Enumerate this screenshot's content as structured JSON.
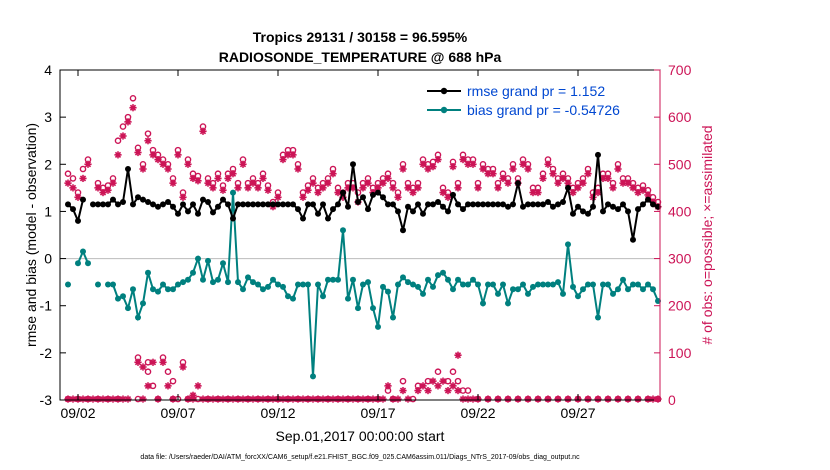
{
  "chart_data": {
    "type": "line",
    "title_line1": "Tropics 29131 / 30158 = 96.595%",
    "title_line2": "RADIOSONDE_TEMPERATURE @ 688 hPa",
    "xlabel": "Sep.01,2017 00:00:00 start",
    "ylabel_left": "rmse and bias (model - observation)",
    "ylabel_right": "# of obs: o=possible; ×=assimilated",
    "footer": "data file: /Users/raeder/DAI/ATM_forcXX/CAM6_setup/f.e21.FHIST_BGC.f09_025.CAM6assim.011/Diags_NTrS_2017-09/obs_diag_output.nc",
    "xlim": [
      0.6,
      30.6
    ],
    "ylim_left": [
      -3,
      4
    ],
    "ylim_right": [
      0,
      700
    ],
    "xticks": [
      1.5,
      6.5,
      11.5,
      16.5,
      21.5,
      26.5
    ],
    "xtick_labels": [
      "09/02",
      "09/07",
      "09/12",
      "09/17",
      "09/22",
      "09/27"
    ],
    "yticks_left": [
      -3,
      -2,
      -1,
      0,
      1,
      2,
      3,
      4
    ],
    "yticks_right": [
      0,
      100,
      200,
      300,
      400,
      500,
      600,
      700
    ],
    "colors": {
      "rmse": "#000000",
      "bias": "#00807f",
      "obs": "#cc1456",
      "legend_text": "#0047d1",
      "zero": "#bbbbbb"
    },
    "legend": [
      {
        "name": "rmse grand pr = 1.152"
      },
      {
        "name": "bias grand pr = -0.54726"
      }
    ],
    "x": [
      1.0,
      1.25,
      1.5,
      1.75,
      2.0,
      2.25,
      2.5,
      2.75,
      3.0,
      3.25,
      3.5,
      3.75,
      4.0,
      4.25,
      4.5,
      4.75,
      5.0,
      5.25,
      5.5,
      5.75,
      6.0,
      6.25,
      6.5,
      6.75,
      7.0,
      7.25,
      7.5,
      7.75,
      8.0,
      8.25,
      8.5,
      8.75,
      9.0,
      9.25,
      9.5,
      9.75,
      10.0,
      10.25,
      10.5,
      10.75,
      11.0,
      11.25,
      11.5,
      11.75,
      12.0,
      12.25,
      12.5,
      12.75,
      13.0,
      13.25,
      13.5,
      13.75,
      14.0,
      14.25,
      14.5,
      14.75,
      15.0,
      15.25,
      15.5,
      15.75,
      16.0,
      16.25,
      16.5,
      16.75,
      17.0,
      17.25,
      17.5,
      17.75,
      18.0,
      18.25,
      18.5,
      18.75,
      19.0,
      19.25,
      19.5,
      19.75,
      20.0,
      20.25,
      20.5,
      20.75,
      21.0,
      21.25,
      21.5,
      21.75,
      22.0,
      22.25,
      22.5,
      22.75,
      23.0,
      23.25,
      23.5,
      23.75,
      24.0,
      24.25,
      24.5,
      24.75,
      25.0,
      25.25,
      25.5,
      25.75,
      26.0,
      26.25,
      26.5,
      26.75,
      27.0,
      27.25,
      27.5,
      27.75,
      28.0,
      28.25,
      28.5,
      28.75,
      29.0,
      29.25,
      29.5,
      29.75,
      30.0,
      30.25,
      30.5
    ],
    "rmse": [
      1.15,
      1.05,
      0.8,
      1.25,
      null,
      1.15,
      1.15,
      1.15,
      1.15,
      1.25,
      1.15,
      1.2,
      1.9,
      1.15,
      1.3,
      1.25,
      1.2,
      1.15,
      1.1,
      1.15,
      1.2,
      1.1,
      0.95,
      1.15,
      1.0,
      1.15,
      0.95,
      1.25,
      1.2,
      0.98,
      1.1,
      1.25,
      1.15,
      0.85,
      1.15,
      1.15,
      1.15,
      1.15,
      1.15,
      1.15,
      1.15,
      1.15,
      1.15,
      1.15,
      1.15,
      1.15,
      1.05,
      0.85,
      1.15,
      1.15,
      0.95,
      1.15,
      0.85,
      1.05,
      1.15,
      1.4,
      1.1,
      2.0,
      1.2,
      1.3,
      1.05,
      1.35,
      1.4,
      1.3,
      1.15,
      1.15,
      1.0,
      0.6,
      1.1,
      1.0,
      1.15,
      0.95,
      1.15,
      1.15,
      1.2,
      1.1,
      1.0,
      1.35,
      1.15,
      1.05,
      1.15,
      1.15,
      1.15,
      1.15,
      1.15,
      1.15,
      1.15,
      1.15,
      1.1,
      1.15,
      1.6,
      1.1,
      1.15,
      1.15,
      1.15,
      1.15,
      1.2,
      1.1,
      1.15,
      1.2,
      1.5,
      0.95,
      1.1,
      1.0,
      0.95,
      1.1,
      2.2,
      1.0,
      1.15,
      1.1,
      1.05,
      1.15,
      1.0,
      0.4,
      1.05,
      1.15,
      1.25,
      1.15,
      1.1
    ],
    "bias": [
      -0.55,
      null,
      -0.1,
      0.15,
      -0.1,
      null,
      -0.55,
      null,
      -0.55,
      -0.55,
      -0.85,
      -0.8,
      -1.05,
      -0.65,
      -1.25,
      -0.95,
      -0.3,
      -0.65,
      -0.7,
      -0.55,
      -0.65,
      -0.65,
      -0.55,
      -0.5,
      -0.45,
      -0.3,
      0.0,
      -0.45,
      -0.05,
      -0.5,
      -0.45,
      -0.1,
      -0.5,
      1.4,
      -0.5,
      -0.65,
      -0.4,
      -0.5,
      -0.55,
      -0.65,
      -0.6,
      -0.45,
      -0.55,
      -0.6,
      -0.8,
      -0.85,
      -0.55,
      -0.55,
      -0.55,
      -2.5,
      -0.55,
      -0.8,
      -0.45,
      -0.45,
      -0.45,
      0.6,
      -0.85,
      -0.45,
      -1.05,
      -0.55,
      -0.5,
      -1.05,
      -1.45,
      -0.6,
      -0.7,
      -1.25,
      -0.55,
      -0.4,
      -0.5,
      -0.55,
      -0.6,
      -0.75,
      -0.45,
      -0.6,
      -0.35,
      -0.3,
      -0.45,
      -0.65,
      -0.45,
      -0.55,
      -0.55,
      -0.45,
      -0.55,
      -0.95,
      -0.55,
      -0.55,
      -0.75,
      -0.55,
      -0.95,
      -0.65,
      -0.65,
      -0.55,
      -0.75,
      -0.6,
      -0.55,
      -0.55,
      -0.55,
      -0.55,
      -0.5,
      -0.75,
      0.3,
      -0.6,
      -0.8,
      -0.65,
      -0.55,
      -0.55,
      -1.25,
      -0.55,
      -0.55,
      -0.75,
      -0.65,
      -0.45,
      -0.65,
      -0.55,
      -0.55,
      -0.65,
      -0.55,
      -0.65,
      -0.9
    ],
    "obs_possible": [
      480,
      470,
      440,
      490,
      510,
      null,
      460,
      450,
      455,
      470,
      550,
      580,
      600,
      640,
      535,
      500,
      565,
      530,
      520,
      510,
      500,
      470,
      530,
      440,
      510,
      480,
      475,
      580,
      470,
      460,
      480,
      455,
      480,
      490,
      460,
      510,
      460,
      470,
      460,
      480,
      455,
      420,
      440,
      520,
      530,
      530,
      500,
      440,
      455,
      470,
      450,
      460,
      470,
      490,
      450,
      440,
      460,
      460,
      440,
      460,
      470,
      450,
      460,
      470,
      480,
      460,
      440,
      500,
      460,
      450,
      460,
      510,
      500,
      505,
      520,
      450,
      440,
      505,
      460,
      520,
      510,
      510,
      460,
      500,
      490,
      490,
      460,
      480,
      470,
      500,
      470,
      510,
      500,
      450,
      450,
      480,
      510,
      490,
      470,
      480,
      470,
      450,
      460,
      470,
      490,
      440,
      450,
      480,
      480,
      460,
      500,
      470,
      470,
      460,
      450,
      455,
      445,
      430,
      420
    ],
    "obs_assimilated": [
      460,
      450,
      430,
      470,
      500,
      null,
      450,
      440,
      445,
      460,
      520,
      560,
      590,
      620,
      525,
      490,
      550,
      520,
      510,
      500,
      490,
      460,
      520,
      430,
      500,
      470,
      465,
      570,
      460,
      450,
      470,
      445,
      470,
      480,
      450,
      500,
      450,
      460,
      450,
      470,
      445,
      410,
      430,
      510,
      520,
      520,
      490,
      430,
      445,
      460,
      440,
      450,
      460,
      480,
      440,
      430,
      450,
      450,
      420,
      450,
      460,
      440,
      450,
      460,
      470,
      450,
      430,
      490,
      450,
      440,
      450,
      500,
      490,
      495,
      510,
      440,
      430,
      495,
      450,
      510,
      500,
      500,
      450,
      490,
      480,
      480,
      450,
      470,
      460,
      490,
      460,
      500,
      490,
      440,
      440,
      470,
      500,
      480,
      460,
      470,
      460,
      440,
      450,
      460,
      480,
      430,
      440,
      470,
      470,
      450,
      490,
      460,
      460,
      450,
      440,
      445,
      435,
      420,
      410
    ],
    "obs_possible_0z": [
      {
        "x": 1.0,
        "v": 2
      },
      {
        "x": 1.5,
        "v": 2
      },
      {
        "x": 2.0,
        "v": 2
      },
      {
        "x": 2.5,
        "v": 2
      },
      {
        "x": 3.0,
        "v": 2
      },
      {
        "x": 3.5,
        "v": 2
      },
      {
        "x": 4.5,
        "v": 2
      },
      {
        "x": 5.0,
        "v": 80
      },
      {
        "x": 5.25,
        "v": 30
      },
      {
        "x": 5.5,
        "v": 2
      },
      {
        "x": 6.0,
        "v": 60
      },
      {
        "x": 6.25,
        "v": 2
      },
      {
        "x": 6.5,
        "v": 2
      },
      {
        "x": 7.0,
        "v": 2
      },
      {
        "x": 7.5,
        "v": 2
      },
      {
        "x": 8.0,
        "v": 2
      },
      {
        "x": 8.5,
        "v": 2
      },
      {
        "x": 9.0,
        "v": 2
      },
      {
        "x": 9.5,
        "v": 2
      },
      {
        "x": 10.0,
        "v": 2
      },
      {
        "x": 10.5,
        "v": 2
      },
      {
        "x": 11.0,
        "v": 2
      },
      {
        "x": 11.5,
        "v": 2
      },
      {
        "x": 12.0,
        "v": 2
      },
      {
        "x": 12.5,
        "v": 2
      },
      {
        "x": 13.0,
        "v": 2
      },
      {
        "x": 13.5,
        "v": 2
      },
      {
        "x": 14.0,
        "v": 2
      },
      {
        "x": 14.5,
        "v": 2
      },
      {
        "x": 15.0,
        "v": 2
      },
      {
        "x": 15.5,
        "v": 2
      },
      {
        "x": 16.0,
        "v": 2
      },
      {
        "x": 16.5,
        "v": 2
      },
      {
        "x": 17.0,
        "v": 20
      },
      {
        "x": 17.25,
        "v": 2
      },
      {
        "x": 17.75,
        "v": 40
      },
      {
        "x": 18.25,
        "v": 2
      },
      {
        "x": 18.5,
        "v": 30
      },
      {
        "x": 19.0,
        "v": 40
      },
      {
        "x": 19.5,
        "v": 60
      },
      {
        "x": 20.0,
        "v": 40
      },
      {
        "x": 20.25,
        "v": 60
      },
      {
        "x": 20.5,
        "v": 40
      },
      {
        "x": 21.0,
        "v": 20
      },
      {
        "x": 21.5,
        "v": 2
      },
      {
        "x": 22.0,
        "v": 2
      },
      {
        "x": 22.5,
        "v": 2
      },
      {
        "x": 23.0,
        "v": 2
      },
      {
        "x": 23.5,
        "v": 2
      },
      {
        "x": 24.0,
        "v": 2
      },
      {
        "x": 24.5,
        "v": 2
      },
      {
        "x": 25.0,
        "v": 2
      },
      {
        "x": 25.5,
        "v": 2
      },
      {
        "x": 26.0,
        "v": 2
      },
      {
        "x": 26.5,
        "v": 2
      },
      {
        "x": 27.0,
        "v": 2
      },
      {
        "x": 27.5,
        "v": 2
      },
      {
        "x": 28.0,
        "v": 2
      },
      {
        "x": 28.5,
        "v": 2
      },
      {
        "x": 29.0,
        "v": 2
      },
      {
        "x": 29.5,
        "v": 2
      },
      {
        "x": 30.0,
        "v": 2
      },
      {
        "x": 30.5,
        "v": 2
      }
    ],
    "obs_assimilated_0z": [
      {
        "x": 1.0,
        "v": 2
      },
      {
        "x": 1.25,
        "v": 2
      },
      {
        "x": 1.5,
        "v": 2
      },
      {
        "x": 1.75,
        "v": 2
      },
      {
        "x": 2.0,
        "v": 2
      },
      {
        "x": 2.25,
        "v": 2
      },
      {
        "x": 2.5,
        "v": 2
      },
      {
        "x": 2.75,
        "v": 2
      },
      {
        "x": 3.0,
        "v": 2
      },
      {
        "x": 3.25,
        "v": 2
      },
      {
        "x": 3.5,
        "v": 2
      },
      {
        "x": 3.75,
        "v": 2
      },
      {
        "x": 4.0,
        "v": 2
      },
      {
        "x": 4.5,
        "v": 80
      },
      {
        "x": 4.75,
        "v": 2
      },
      {
        "x": 5.0,
        "v": 30
      },
      {
        "x": 5.25,
        "v": 80
      },
      {
        "x": 5.5,
        "v": 2
      },
      {
        "x": 5.75,
        "v": 80
      },
      {
        "x": 6.0,
        "v": 30
      },
      {
        "x": 6.25,
        "v": 2
      },
      {
        "x": 6.75,
        "v": 70
      },
      {
        "x": 7.0,
        "v": 2
      },
      {
        "x": 7.25,
        "v": 2
      },
      {
        "x": 7.5,
        "v": 30
      },
      {
        "x": 7.75,
        "v": 2
      },
      {
        "x": 8.0,
        "v": 2
      },
      {
        "x": 8.25,
        "v": 2
      },
      {
        "x": 8.5,
        "v": 2
      },
      {
        "x": 8.75,
        "v": 2
      },
      {
        "x": 9.0,
        "v": 2
      },
      {
        "x": 9.25,
        "v": 2
      },
      {
        "x": 9.5,
        "v": 2
      },
      {
        "x": 9.75,
        "v": 2
      },
      {
        "x": 10.0,
        "v": 2
      },
      {
        "x": 10.25,
        "v": 2
      },
      {
        "x": 10.5,
        "v": 2
      },
      {
        "x": 10.75,
        "v": 2
      },
      {
        "x": 11.0,
        "v": 2
      },
      {
        "x": 11.25,
        "v": 2
      },
      {
        "x": 11.5,
        "v": 2
      },
      {
        "x": 11.75,
        "v": 2
      },
      {
        "x": 12.0,
        "v": 2
      },
      {
        "x": 12.25,
        "v": 2
      },
      {
        "x": 12.5,
        "v": 2
      },
      {
        "x": 12.75,
        "v": 2
      },
      {
        "x": 13.0,
        "v": 2
      },
      {
        "x": 13.25,
        "v": 2
      },
      {
        "x": 13.5,
        "v": 2
      },
      {
        "x": 13.75,
        "v": 2
      },
      {
        "x": 14.0,
        "v": 2
      },
      {
        "x": 14.25,
        "v": 2
      },
      {
        "x": 14.5,
        "v": 2
      },
      {
        "x": 14.75,
        "v": 2
      },
      {
        "x": 15.0,
        "v": 2
      },
      {
        "x": 15.25,
        "v": 2
      },
      {
        "x": 15.5,
        "v": 2
      },
      {
        "x": 15.75,
        "v": 2
      },
      {
        "x": 16.0,
        "v": 2
      },
      {
        "x": 16.25,
        "v": 2
      },
      {
        "x": 16.5,
        "v": 2
      },
      {
        "x": 16.75,
        "v": 2
      },
      {
        "x": 17.0,
        "v": 30
      },
      {
        "x": 17.25,
        "v": 2
      },
      {
        "x": 17.5,
        "v": 2
      },
      {
        "x": 17.75,
        "v": 20
      },
      {
        "x": 18.0,
        "v": 2
      },
      {
        "x": 18.5,
        "v": 20
      },
      {
        "x": 18.75,
        "v": 30
      },
      {
        "x": 19.0,
        "v": 20
      },
      {
        "x": 19.25,
        "v": 40
      },
      {
        "x": 19.5,
        "v": 30
      },
      {
        "x": 19.75,
        "v": 40
      },
      {
        "x": 20.0,
        "v": 20
      },
      {
        "x": 20.25,
        "v": 30
      },
      {
        "x": 20.5,
        "v": 20
      },
      {
        "x": 20.75,
        "v": 2
      },
      {
        "x": 21.0,
        "v": 2
      },
      {
        "x": 21.25,
        "v": 2
      },
      {
        "x": 21.5,
        "v": 2
      },
      {
        "x": 22.0,
        "v": 2
      },
      {
        "x": 22.5,
        "v": 2
      },
      {
        "x": 23.0,
        "v": 2
      },
      {
        "x": 23.5,
        "v": 2
      },
      {
        "x": 24.0,
        "v": 2
      },
      {
        "x": 24.5,
        "v": 2
      },
      {
        "x": 25.0,
        "v": 2
      },
      {
        "x": 25.5,
        "v": 2
      },
      {
        "x": 26.0,
        "v": 2
      },
      {
        "x": 26.5,
        "v": 2
      },
      {
        "x": 27.0,
        "v": 2
      },
      {
        "x": 27.5,
        "v": 2
      },
      {
        "x": 28.0,
        "v": 2
      },
      {
        "x": 28.5,
        "v": 2
      },
      {
        "x": 29.0,
        "v": 2
      },
      {
        "x": 29.5,
        "v": 2
      },
      {
        "x": 30.0,
        "v": 2
      },
      {
        "x": 30.25,
        "v": 2
      },
      {
        "x": 30.5,
        "v": 2
      }
    ],
    "obs_low_extra": [
      {
        "x": 4.5,
        "v": 90,
        "kind": "possible"
      },
      {
        "x": 4.75,
        "v": 70,
        "kind": "assimilated"
      },
      {
        "x": 5.0,
        "v": 60,
        "kind": "possible"
      },
      {
        "x": 5.75,
        "v": 90,
        "kind": "possible"
      },
      {
        "x": 6.25,
        "v": 40,
        "kind": "possible"
      },
      {
        "x": 6.75,
        "v": 80,
        "kind": "possible"
      },
      {
        "x": 7.25,
        "v": 10,
        "kind": "assimilated"
      },
      {
        "x": 20.5,
        "v": 95,
        "kind": "assimilated"
      },
      {
        "x": 20.75,
        "v": 20,
        "kind": "possible"
      }
    ]
  }
}
